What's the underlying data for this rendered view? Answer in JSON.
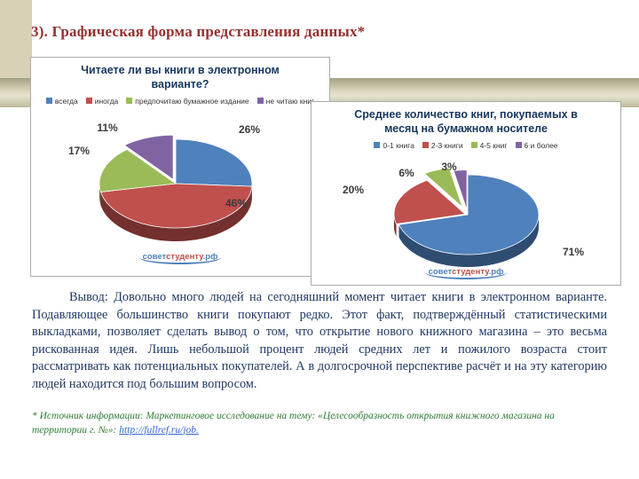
{
  "slide": {
    "title": "3). Графическая форма представления данных*"
  },
  "chart_data": [
    {
      "type": "pie",
      "style": "3d-exploded",
      "title": "Читаете ли вы книги в электронном варианте?",
      "categories": [
        "всегда",
        "иногда",
        "предпочитаю бумажное издание",
        "не читаю книг"
      ],
      "values": [
        26,
        46,
        17,
        11
      ],
      "labels": [
        "26%",
        "46%",
        "17%",
        "11%"
      ],
      "colors": [
        "#4f81bd",
        "#c0504d",
        "#9bbb59",
        "#8064a2"
      ],
      "explode": [
        0,
        0,
        0,
        0.1
      ],
      "legend_position": "top",
      "start_angle": "12-oclock-clockwise",
      "watermark": {
        "parts": [
          {
            "text": "совет",
            "color": "#4f81bd"
          },
          {
            "text": "студенту",
            "color": "#c0504d"
          },
          {
            "text": ".рф",
            "color": "#4f81bd"
          }
        ]
      }
    },
    {
      "type": "pie",
      "style": "3d-exploded",
      "title": "Среднее количество книг, покупаемых в месяц на бумажном носителе",
      "categories": [
        "0-1 книга",
        "2-3 книги",
        "4-5 книг",
        "6 и более"
      ],
      "values": [
        71,
        20,
        6,
        3
      ],
      "labels": [
        "71%",
        "20%",
        "6%",
        "3%"
      ],
      "colors": [
        "#4f81bd",
        "#c0504d",
        "#9bbb59",
        "#8064a2"
      ],
      "explode": [
        0,
        0.04,
        0.2,
        0.12
      ],
      "legend_position": "top",
      "start_angle": "12-oclock-clockwise",
      "watermark": {
        "parts": [
          {
            "text": "совет",
            "color": "#4f81bd"
          },
          {
            "text": "студенту",
            "color": "#c0504d"
          },
          {
            "text": ".рф",
            "color": "#4f81bd"
          }
        ]
      }
    }
  ],
  "conclusion": {
    "text": "Вывод: Довольно много людей на сегодняшний момент читает книги в электронном варианте. Подавляющее большинство книги покупают редко. Этот факт, подтверждённый статистическими выкладками, позволяет сделать вывод о том, что открытие нового книжного магазина – это весьма рискованная идея. Лишь небольшой процент людей средних лет и пожилого возраста стоит рассматривать как потенциальных покупателей. А в долгосрочной перспективе расчёт и на эту категорию людей находится под большим вопросом."
  },
  "footnote": {
    "prefix": "* Источник информации: Маркетинговое исследование на тему: «Целесообразность открытия книжного магазина на территории г. №»: ",
    "link": "http://fullref.ru/job."
  }
}
